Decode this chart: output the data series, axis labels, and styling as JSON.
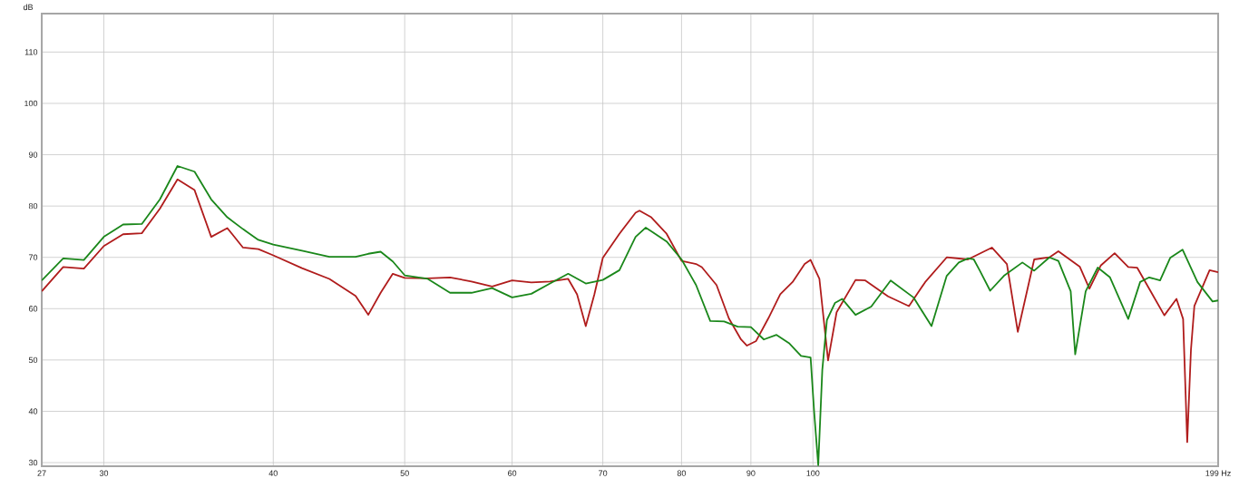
{
  "chart_data": {
    "type": "line",
    "ylabel": "dB",
    "log": "x",
    "grid": true,
    "xlim": [
      27,
      199
    ],
    "ylim": [
      29.3,
      117.5
    ],
    "xticks": [
      27,
      30,
      40,
      50,
      60,
      70,
      80,
      90,
      100,
      {
        "value": 199,
        "label": "199 Hz"
      }
    ],
    "yticks": [
      30,
      40,
      50,
      60,
      70,
      80,
      90,
      100,
      110
    ],
    "series": [
      {
        "color": "#b01c1c",
        "x": [
          27,
          28,
          29,
          30,
          31,
          32,
          33,
          34,
          35,
          36,
          37,
          38,
          39,
          40,
          42,
          44,
          46,
          47,
          48,
          49,
          50,
          52,
          54,
          56,
          58,
          60,
          62,
          64,
          66,
          67,
          68,
          69,
          70,
          72,
          74,
          74.5,
          76,
          78,
          80,
          82,
          82.8,
          84.9,
          86.7,
          88.5,
          89.4,
          90.8,
          92.7,
          94.6,
          96.6,
          98.6,
          99.6,
          101.1,
          102.6,
          104.1,
          107.5,
          109.3,
          113.6,
          117.7,
          121.0,
          125.5,
          130.1,
          135.5,
          139.0,
          141.6,
          145.6,
          149.4,
          151.7,
          157.3,
          159.9,
          163.0,
          166.9,
          170.8,
          173.4,
          181.6,
          185.4,
          187.5,
          188.8,
          190.0,
          191.1,
          196.1,
          199
        ],
        "values": [
          63.4,
          68.1,
          67.8,
          72.2,
          74.5,
          74.7,
          79.5,
          85.2,
          83.1,
          74.0,
          75.7,
          71.9,
          71.6,
          70.4,
          67.9,
          65.8,
          62.5,
          58.8,
          63.1,
          66.8,
          66.0,
          65.9,
          66.1,
          65.3,
          64.3,
          65.5,
          65.1,
          65.3,
          65.8,
          62.8,
          56.6,
          62.8,
          69.9,
          74.6,
          78.7,
          79.1,
          77.8,
          74.6,
          69.3,
          68.7,
          68.1,
          64.6,
          58.1,
          54.0,
          52.8,
          53.7,
          58.1,
          62.8,
          65.2,
          68.7,
          69.5,
          65.8,
          49.9,
          59.3,
          65.6,
          65.5,
          62.4,
          60.5,
          65.2,
          70.0,
          69.6,
          71.9,
          68.7,
          55.5,
          69.6,
          70.0,
          71.2,
          68.2,
          63.9,
          68.4,
          70.8,
          68.1,
          68.0,
          58.7,
          61.9,
          58.0,
          34.0,
          52.0,
          60.5,
          67.5,
          67.1
        ]
      },
      {
        "color": "#1a871a",
        "x": [
          27,
          28,
          29,
          30,
          31,
          32,
          33,
          34,
          35,
          36,
          37,
          38,
          39,
          40,
          42,
          44,
          46,
          47,
          48,
          49,
          50,
          52,
          54,
          56,
          58,
          60,
          62,
          64,
          66,
          68,
          70,
          72,
          74,
          75.3,
          78,
          80,
          82,
          84,
          86,
          88,
          90,
          92,
          94,
          96,
          98,
          99.6,
          100.2,
          100.9,
          101.6,
          102.4,
          103.8,
          105.1,
          107.5,
          110.4,
          114.1,
          118.6,
          122.3,
          125.5,
          128.1,
          130.1,
          131.4,
          132.7,
          135.1,
          138.3,
          142.7,
          145.6,
          149.4,
          151.7,
          154.9,
          156.1,
          158.9,
          162.2,
          165.6,
          170.8,
          174.3,
          177.0,
          180.3,
          183.4,
          187.3,
          192.1,
          197.1,
          199
        ],
        "values": [
          65.5,
          69.8,
          69.5,
          74.0,
          76.4,
          76.5,
          81.3,
          87.8,
          86.7,
          81.3,
          77.8,
          75.5,
          73.4,
          72.5,
          71.3,
          70.1,
          70.1,
          70.7,
          71.1,
          69.2,
          66.5,
          65.8,
          63.1,
          63.1,
          64.0,
          62.2,
          62.9,
          64.9,
          66.8,
          64.9,
          65.6,
          67.5,
          74.0,
          75.8,
          73.1,
          69.6,
          64.6,
          57.6,
          57.5,
          56.5,
          56.4,
          54.0,
          54.9,
          53.3,
          50.8,
          50.5,
          39.9,
          29.5,
          48.1,
          57.8,
          61.1,
          61.9,
          58.8,
          60.4,
          65.5,
          62.2,
          56.6,
          66.4,
          69.0,
          69.8,
          69.6,
          67.5,
          63.5,
          66.4,
          69.0,
          67.4,
          70.0,
          69.3,
          63.4,
          51.1,
          63.4,
          68.0,
          66.1,
          58.0,
          65.2,
          66.1,
          65.5,
          69.9,
          71.5,
          65.2,
          61.4,
          61.6
        ]
      }
    ]
  }
}
